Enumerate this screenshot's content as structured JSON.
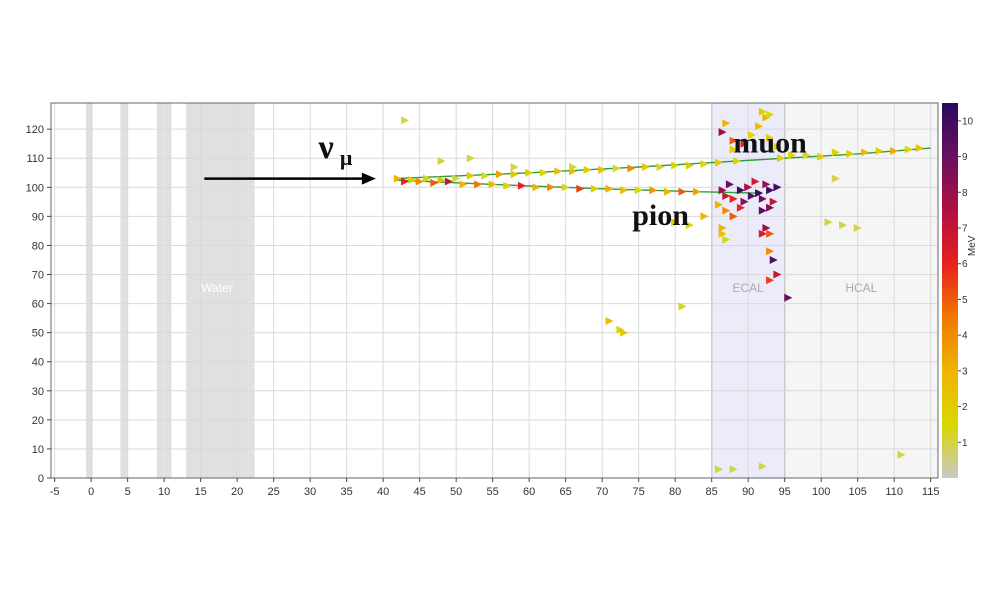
{
  "chart_data": {
    "type": "scatter",
    "title": "",
    "xlabel": "",
    "ylabel": "",
    "xlim": [
      -5.5,
      116
    ],
    "ylim": [
      0,
      129
    ],
    "x_ticks": [
      -5,
      0,
      5,
      10,
      15,
      20,
      25,
      30,
      35,
      40,
      45,
      50,
      55,
      60,
      65,
      70,
      75,
      80,
      85,
      90,
      95,
      100,
      105,
      110,
      115
    ],
    "y_ticks": [
      0,
      10,
      20,
      30,
      40,
      50,
      60,
      70,
      80,
      90,
      100,
      110,
      120
    ],
    "grid": true,
    "regions": [
      {
        "label": "",
        "x0": -0.7,
        "x1": 0.2,
        "fill": "#e0e0e0"
      },
      {
        "label": "",
        "x0": 4.0,
        "x1": 5.0,
        "fill": "#e0e0e0"
      },
      {
        "label": "",
        "x0": 9.0,
        "x1": 9.9,
        "fill": "#e0e0e0"
      },
      {
        "label": "",
        "x0": 10.1,
        "x1": 11.0,
        "fill": "#e0e0e0"
      },
      {
        "label": "Water",
        "x0": 13.0,
        "x1": 21.5,
        "fill": "#e0e0e0"
      },
      {
        "label": "",
        "x0": 18.5,
        "x1": 19.3,
        "fill": "#e0e0e0"
      },
      {
        "label": "",
        "x0": 21.5,
        "x1": 22.4,
        "fill": "#e0e0e0"
      },
      {
        "label": "ECAL",
        "x0": 85.0,
        "x1": 95.0,
        "fill": "#ebebfa"
      },
      {
        "label": "HCAL",
        "x0": 95.0,
        "x1": 116.0,
        "fill": "#f5f5f5"
      }
    ],
    "tracks": [
      {
        "name": "muon",
        "color": "#2e9e3a",
        "points": [
          [
            41.5,
            103
          ],
          [
            60,
            105
          ],
          [
            75,
            107
          ],
          [
            85,
            108.5
          ],
          [
            95,
            110
          ],
          [
            105,
            111.5
          ],
          [
            115,
            113.5
          ]
        ]
      },
      {
        "name": "pion",
        "color": "#2e9e3a",
        "points": [
          [
            41.5,
            102.5
          ],
          [
            55,
            101
          ],
          [
            70,
            99.5
          ],
          [
            83,
            98.5
          ],
          [
            91,
            98
          ]
        ]
      }
    ],
    "hits": [
      {
        "x": 42,
        "y": 103,
        "e": 3
      },
      {
        "x": 43,
        "y": 102,
        "e": 6
      },
      {
        "x": 44,
        "y": 102.5,
        "e": 2
      },
      {
        "x": 45,
        "y": 102,
        "e": 4
      },
      {
        "x": 46,
        "y": 103,
        "e": 1.5
      },
      {
        "x": 47,
        "y": 101.5,
        "e": 5
      },
      {
        "x": 48,
        "y": 102.5,
        "e": 2.5
      },
      {
        "x": 49,
        "y": 102,
        "e": 7
      },
      {
        "x": 50,
        "y": 103,
        "e": 1
      },
      {
        "x": 51,
        "y": 101,
        "e": 3
      },
      {
        "x": 52,
        "y": 104,
        "e": 2
      },
      {
        "x": 53,
        "y": 101,
        "e": 4.5
      },
      {
        "x": 54,
        "y": 104,
        "e": 1.2
      },
      {
        "x": 55,
        "y": 101,
        "e": 2.8
      },
      {
        "x": 56,
        "y": 104.5,
        "e": 3.5
      },
      {
        "x": 57,
        "y": 100.5,
        "e": 1.8
      },
      {
        "x": 58,
        "y": 104.5,
        "e": 2.2
      },
      {
        "x": 59,
        "y": 100.5,
        "e": 6
      },
      {
        "x": 60,
        "y": 105,
        "e": 2
      },
      {
        "x": 61,
        "y": 100,
        "e": 3
      },
      {
        "x": 62,
        "y": 105,
        "e": 1.5
      },
      {
        "x": 63,
        "y": 100,
        "e": 4
      },
      {
        "x": 64,
        "y": 105.5,
        "e": 2.5
      },
      {
        "x": 65,
        "y": 100,
        "e": 1.2
      },
      {
        "x": 66,
        "y": 105.5,
        "e": 3
      },
      {
        "x": 67,
        "y": 99.5,
        "e": 5.5
      },
      {
        "x": 68,
        "y": 106,
        "e": 2
      },
      {
        "x": 69,
        "y": 99.5,
        "e": 1.8
      },
      {
        "x": 70,
        "y": 106,
        "e": 2.4
      },
      {
        "x": 71,
        "y": 99.5,
        "e": 3.2
      },
      {
        "x": 72,
        "y": 106.5,
        "e": 1.1
      },
      {
        "x": 73,
        "y": 99,
        "e": 2.6
      },
      {
        "x": 74,
        "y": 106.5,
        "e": 4
      },
      {
        "x": 75,
        "y": 99,
        "e": 1.5
      },
      {
        "x": 76,
        "y": 107,
        "e": 2.2
      },
      {
        "x": 77,
        "y": 99,
        "e": 3.8
      },
      {
        "x": 78,
        "y": 107,
        "e": 1.3
      },
      {
        "x": 79,
        "y": 98.5,
        "e": 2.9
      },
      {
        "x": 80,
        "y": 107.5,
        "e": 1.7
      },
      {
        "x": 81,
        "y": 98.5,
        "e": 5
      },
      {
        "x": 82,
        "y": 107.5,
        "e": 2.1
      },
      {
        "x": 83,
        "y": 98.5,
        "e": 3.4
      },
      {
        "x": 84,
        "y": 108,
        "e": 1.4
      },
      {
        "x": 86,
        "y": 108.5,
        "e": 2
      },
      {
        "x": 86.5,
        "y": 99,
        "e": 8
      },
      {
        "x": 87,
        "y": 97,
        "e": 7
      },
      {
        "x": 87.5,
        "y": 101,
        "e": 9
      },
      {
        "x": 88,
        "y": 96,
        "e": 6
      },
      {
        "x": 88.5,
        "y": 109,
        "e": 1.5
      },
      {
        "x": 89,
        "y": 99,
        "e": 10
      },
      {
        "x": 89.5,
        "y": 95,
        "e": 8.5
      },
      {
        "x": 90,
        "y": 100,
        "e": 7.5
      },
      {
        "x": 90.5,
        "y": 97,
        "e": 9.5
      },
      {
        "x": 91,
        "y": 102,
        "e": 6.5
      },
      {
        "x": 91.5,
        "y": 98,
        "e": 10.3
      },
      {
        "x": 92,
        "y": 96,
        "e": 9
      },
      {
        "x": 92.5,
        "y": 101,
        "e": 8
      },
      {
        "x": 93,
        "y": 99,
        "e": 10
      },
      {
        "x": 93.5,
        "y": 95,
        "e": 7
      },
      {
        "x": 94,
        "y": 100,
        "e": 9.8
      },
      {
        "x": 94.5,
        "y": 110,
        "e": 2
      },
      {
        "x": 87,
        "y": 92,
        "e": 4
      },
      {
        "x": 88,
        "y": 90,
        "e": 5
      },
      {
        "x": 86,
        "y": 94,
        "e": 3
      },
      {
        "x": 89,
        "y": 93,
        "e": 6
      },
      {
        "x": 92,
        "y": 92,
        "e": 9.5
      },
      {
        "x": 93,
        "y": 93,
        "e": 8.5
      },
      {
        "x": 92.5,
        "y": 86,
        "e": 8
      },
      {
        "x": 93,
        "y": 84,
        "e": 5
      },
      {
        "x": 92,
        "y": 84,
        "e": 6.5
      },
      {
        "x": 93,
        "y": 78,
        "e": 4
      },
      {
        "x": 93.5,
        "y": 75,
        "e": 9.5
      },
      {
        "x": 94,
        "y": 70,
        "e": 7
      },
      {
        "x": 93,
        "y": 68,
        "e": 5.5
      },
      {
        "x": 95.5,
        "y": 62,
        "e": 9
      },
      {
        "x": 86.5,
        "y": 84,
        "e": 2.5
      },
      {
        "x": 87,
        "y": 82,
        "e": 1.5
      },
      {
        "x": 86.5,
        "y": 86,
        "e": 3
      },
      {
        "x": 80,
        "y": 88,
        "e": 2
      },
      {
        "x": 82,
        "y": 87,
        "e": 1.5
      },
      {
        "x": 84,
        "y": 90,
        "e": 3
      },
      {
        "x": 86.5,
        "y": 119,
        "e": 8
      },
      {
        "x": 87,
        "y": 122,
        "e": 3
      },
      {
        "x": 88,
        "y": 116,
        "e": 5
      },
      {
        "x": 88,
        "y": 113,
        "e": 2
      },
      {
        "x": 89.5,
        "y": 115,
        "e": 6
      },
      {
        "x": 90.5,
        "y": 118,
        "e": 1.5
      },
      {
        "x": 91.5,
        "y": 121,
        "e": 2.5
      },
      {
        "x": 92.5,
        "y": 124,
        "e": 3
      },
      {
        "x": 92,
        "y": 126,
        "e": 2
      },
      {
        "x": 93,
        "y": 125,
        "e": 1.5
      },
      {
        "x": 93,
        "y": 117,
        "e": 2
      },
      {
        "x": 94,
        "y": 114,
        "e": 1.2
      },
      {
        "x": 96,
        "y": 111,
        "e": 1.5
      },
      {
        "x": 98,
        "y": 111,
        "e": 1.3
      },
      {
        "x": 100,
        "y": 110.5,
        "e": 2
      },
      {
        "x": 102,
        "y": 112,
        "e": 1.8
      },
      {
        "x": 104,
        "y": 111.5,
        "e": 2.2
      },
      {
        "x": 106,
        "y": 112,
        "e": 2.8
      },
      {
        "x": 108,
        "y": 112.5,
        "e": 2
      },
      {
        "x": 110,
        "y": 112.5,
        "e": 3.2
      },
      {
        "x": 112,
        "y": 113,
        "e": 1.6
      },
      {
        "x": 113.5,
        "y": 113.5,
        "e": 2.4
      },
      {
        "x": 71,
        "y": 54,
        "e": 2.5
      },
      {
        "x": 72.5,
        "y": 51,
        "e": 1.5
      },
      {
        "x": 73,
        "y": 50,
        "e": 2
      },
      {
        "x": 81,
        "y": 59,
        "e": 1.3
      },
      {
        "x": 43,
        "y": 123,
        "e": 1
      },
      {
        "x": 102,
        "y": 103,
        "e": 1
      },
      {
        "x": 101,
        "y": 88,
        "e": 1
      },
      {
        "x": 103,
        "y": 87,
        "e": 1
      },
      {
        "x": 105,
        "y": 86,
        "e": 1
      },
      {
        "x": 111,
        "y": 8,
        "e": 1
      },
      {
        "x": 86,
        "y": 3,
        "e": 1.2
      },
      {
        "x": 88,
        "y": 3,
        "e": 1
      },
      {
        "x": 92,
        "y": 4,
        "e": 1
      },
      {
        "x": 48,
        "y": 109,
        "e": 1
      },
      {
        "x": 52,
        "y": 110,
        "e": 1
      },
      {
        "x": 58,
        "y": 107,
        "e": 1
      },
      {
        "x": 66,
        "y": 107,
        "e": 1.1
      }
    ],
    "colorbar": {
      "label": "MeV",
      "min": 0,
      "max": 10.5,
      "ticks": [
        1,
        2,
        3,
        4,
        5,
        6,
        7,
        8,
        9,
        10
      ],
      "stops": [
        "#c8c8c8",
        "#d8d800",
        "#f0b400",
        "#f07800",
        "#e82020",
        "#b01040",
        "#6a1060",
        "#2a0a60"
      ]
    },
    "annotations": [
      {
        "text": "muon",
        "x": 93,
        "y": 112
      },
      {
        "text": "pion",
        "x": 78,
        "y": 87
      },
      {
        "text": "ν",
        "x": 33,
        "y": 110
      },
      {
        "text": "μ",
        "x": 33,
        "y": 110
      }
    ],
    "arrow": {
      "x0": 15.5,
      "x1": 39,
      "y": 103
    }
  }
}
